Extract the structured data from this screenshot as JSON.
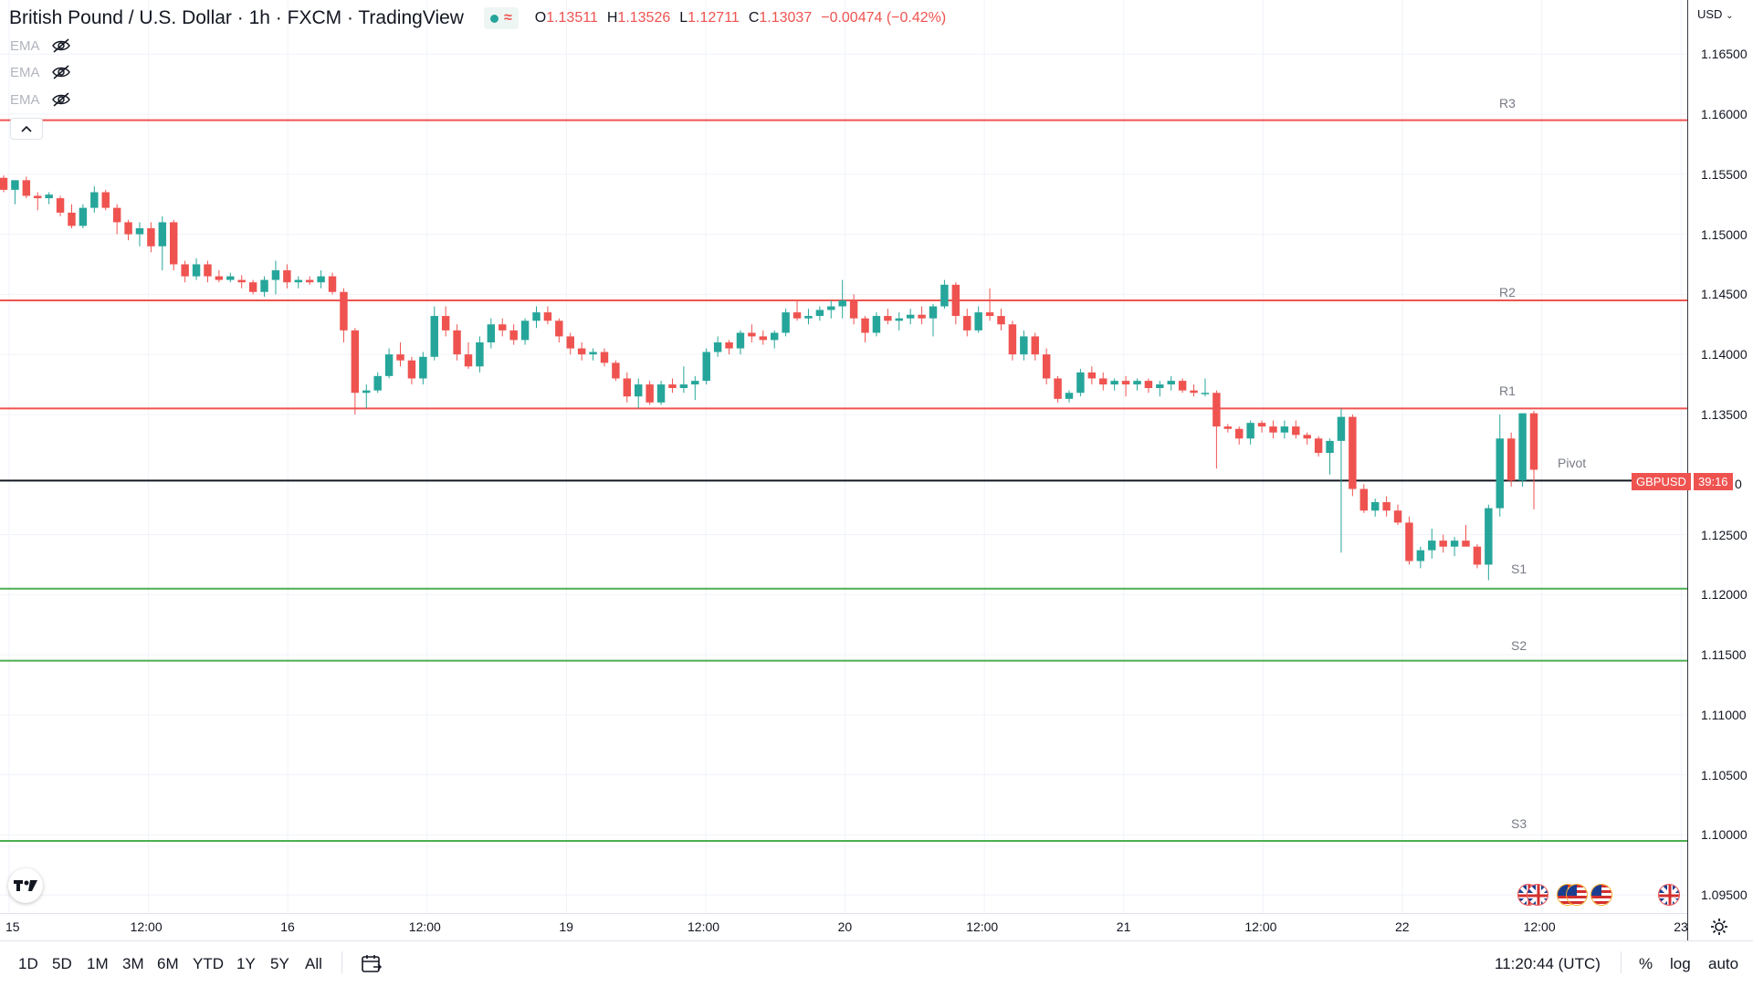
{
  "header": {
    "symbol_title": "British Pound / U.S. Dollar · 1h · FXCM · TradingView",
    "ohlc": [
      {
        "key": "O",
        "value": "1.13511"
      },
      {
        "key": "H",
        "value": "1.13526"
      },
      {
        "key": "L",
        "value": "1.12711"
      },
      {
        "key": "C",
        "value": "1.13037"
      },
      {
        "key": "",
        "value": "−0.00474 (−0.42%)"
      }
    ],
    "status_icon": "market-open-dot",
    "wave_icon": "≈"
  },
  "indicators": [
    {
      "label": "EMA",
      "icon": "eye-hidden-icon"
    },
    {
      "label": "EMA",
      "icon": "eye-hidden-icon"
    },
    {
      "label": "EMA",
      "icon": "eye-hidden-icon"
    }
  ],
  "price_axis": {
    "currency": "USD",
    "ticks": [
      "1.16500",
      "1.16000",
      "1.15500",
      "1.15000",
      "1.14500",
      "1.14000",
      "1.13500",
      "1.12500",
      "1.12000",
      "1.11500",
      "1.11000",
      "1.10500",
      "1.10000",
      "1.09500"
    ],
    "partial_tick": "0"
  },
  "price_badge": {
    "symbol": "GBPUSD",
    "countdown": "39:16",
    "color": "#ef5350"
  },
  "time_axis": {
    "labels": [
      "15",
      "12:00",
      "16",
      "12:00",
      "19",
      "12:00",
      "20",
      "12:00",
      "21",
      "12:00",
      "22",
      "12:00",
      "23"
    ]
  },
  "bottom_toolbar": {
    "ranges": [
      "1D",
      "5D",
      "1M",
      "3M",
      "6M",
      "YTD",
      "1Y",
      "5Y",
      "All"
    ],
    "clock": "11:20:44 (UTC)",
    "percent": "%",
    "log": "log",
    "auto": "auto"
  },
  "colors": {
    "up": "#26a69a",
    "down": "#ef5350",
    "resistance": "#ef5350",
    "support": "#4caf50",
    "pivot": "#131722"
  },
  "chart_data": {
    "type": "candlestick",
    "title": "British Pound / U.S. Dollar",
    "interval": "1h",
    "ylim": [
      1.0935,
      1.1695
    ],
    "levels": [
      {
        "name": "R3",
        "value": 1.1595,
        "kind": "resistance"
      },
      {
        "name": "R2",
        "value": 1.1445,
        "kind": "resistance"
      },
      {
        "name": "R1",
        "value": 1.1355,
        "kind": "resistance"
      },
      {
        "name": "Pivot",
        "value": 1.1295,
        "kind": "pivot"
      },
      {
        "name": "S1",
        "value": 1.1205,
        "kind": "support"
      },
      {
        "name": "S2",
        "value": 1.1145,
        "kind": "support"
      },
      {
        "name": "S3",
        "value": 1.0995,
        "kind": "support"
      }
    ],
    "current_price": 1.13037,
    "candles": [
      [
        1.1547,
        1.1549,
        1.1535,
        1.1537
      ],
      [
        1.1537,
        1.1545,
        1.1525,
        1.1545
      ],
      [
        1.1545,
        1.1548,
        1.153,
        1.1532
      ],
      [
        1.1532,
        1.1535,
        1.152,
        1.153
      ],
      [
        1.153,
        1.1535,
        1.1525,
        1.1533
      ],
      [
        1.153,
        1.1532,
        1.1515,
        1.1518
      ],
      [
        1.1518,
        1.1525,
        1.1505,
        1.1507
      ],
      [
        1.1507,
        1.1525,
        1.1505,
        1.1522
      ],
      [
        1.1522,
        1.154,
        1.1518,
        1.1535
      ],
      [
        1.1535,
        1.1537,
        1.152,
        1.1522
      ],
      [
        1.1522,
        1.1525,
        1.15,
        1.151
      ],
      [
        1.151,
        1.1512,
        1.1495,
        1.15
      ],
      [
        1.15,
        1.151,
        1.149,
        1.1505
      ],
      [
        1.1505,
        1.151,
        1.1485,
        1.149
      ],
      [
        1.149,
        1.1515,
        1.147,
        1.151
      ],
      [
        1.151,
        1.1512,
        1.147,
        1.1475
      ],
      [
        1.1475,
        1.1478,
        1.146,
        1.1465
      ],
      [
        1.1465,
        1.148,
        1.1462,
        1.1475
      ],
      [
        1.1475,
        1.1478,
        1.146,
        1.1465
      ],
      [
        1.1465,
        1.147,
        1.146,
        1.1462
      ],
      [
        1.1462,
        1.1468,
        1.146,
        1.1465
      ],
      [
        1.1462,
        1.1466,
        1.1455,
        1.146
      ],
      [
        1.146,
        1.1462,
        1.145,
        1.1452
      ],
      [
        1.1452,
        1.1465,
        1.1448,
        1.1462
      ],
      [
        1.1462,
        1.1478,
        1.145,
        1.147
      ],
      [
        1.147,
        1.1475,
        1.1455,
        1.146
      ],
      [
        1.146,
        1.1465,
        1.1455,
        1.1462
      ],
      [
        1.1462,
        1.1465,
        1.1458,
        1.146
      ],
      [
        1.146,
        1.147,
        1.1455,
        1.1465
      ],
      [
        1.1465,
        1.1468,
        1.145,
        1.1452
      ],
      [
        1.1452,
        1.1455,
        1.141,
        1.142
      ],
      [
        1.142,
        1.1422,
        1.135,
        1.1368
      ],
      [
        1.1368,
        1.1375,
        1.1355,
        1.137
      ],
      [
        1.137,
        1.1385,
        1.1368,
        1.1382
      ],
      [
        1.1382,
        1.1405,
        1.138,
        1.14
      ],
      [
        1.14,
        1.141,
        1.139,
        1.1395
      ],
      [
        1.1395,
        1.1398,
        1.1375,
        1.138
      ],
      [
        1.138,
        1.1402,
        1.1375,
        1.1398
      ],
      [
        1.1398,
        1.144,
        1.1395,
        1.1432
      ],
      [
        1.1432,
        1.144,
        1.1415,
        1.142
      ],
      [
        1.142,
        1.1425,
        1.1395,
        1.14
      ],
      [
        1.14,
        1.141,
        1.1388,
        1.139
      ],
      [
        1.139,
        1.1415,
        1.1385,
        1.141
      ],
      [
        1.141,
        1.143,
        1.1405,
        1.1425
      ],
      [
        1.1425,
        1.143,
        1.1415,
        1.142
      ],
      [
        1.142,
        1.1425,
        1.1408,
        1.1412
      ],
      [
        1.1412,
        1.143,
        1.1408,
        1.1428
      ],
      [
        1.1428,
        1.144,
        1.1422,
        1.1435
      ],
      [
        1.1435,
        1.144,
        1.1425,
        1.1428
      ],
      [
        1.1428,
        1.143,
        1.141,
        1.1415
      ],
      [
        1.1415,
        1.1418,
        1.14,
        1.1405
      ],
      [
        1.1405,
        1.141,
        1.1395,
        1.14
      ],
      [
        1.14,
        1.1405,
        1.1395,
        1.1402
      ],
      [
        1.1402,
        1.1405,
        1.139,
        1.1393
      ],
      [
        1.1393,
        1.1395,
        1.1378,
        1.138
      ],
      [
        1.138,
        1.1385,
        1.136,
        1.1365
      ],
      [
        1.1365,
        1.138,
        1.1355,
        1.1375
      ],
      [
        1.1375,
        1.1378,
        1.1358,
        1.136
      ],
      [
        1.136,
        1.1378,
        1.1358,
        1.1375
      ],
      [
        1.1375,
        1.138,
        1.1368,
        1.1372
      ],
      [
        1.1372,
        1.139,
        1.1368,
        1.1375
      ],
      [
        1.1375,
        1.1382,
        1.1362,
        1.1378
      ],
      [
        1.1378,
        1.1405,
        1.1375,
        1.1402
      ],
      [
        1.1402,
        1.1415,
        1.1398,
        1.141
      ],
      [
        1.141,
        1.1412,
        1.14,
        1.1405
      ],
      [
        1.1405,
        1.142,
        1.14,
        1.1418
      ],
      [
        1.1418,
        1.1425,
        1.141,
        1.1415
      ],
      [
        1.1415,
        1.142,
        1.1408,
        1.1412
      ],
      [
        1.1412,
        1.142,
        1.1405,
        1.1418
      ],
      [
        1.1418,
        1.1438,
        1.1415,
        1.1435
      ],
      [
        1.1435,
        1.1445,
        1.1428,
        1.143
      ],
      [
        1.143,
        1.1438,
        1.1425,
        1.1432
      ],
      [
        1.1432,
        1.144,
        1.1428,
        1.1437
      ],
      [
        1.1437,
        1.1445,
        1.143,
        1.144
      ],
      [
        1.144,
        1.1462,
        1.143,
        1.1445
      ],
      [
        1.1445,
        1.145,
        1.1425,
        1.143
      ],
      [
        1.143,
        1.1432,
        1.141,
        1.1418
      ],
      [
        1.1418,
        1.1435,
        1.1415,
        1.1432
      ],
      [
        1.1432,
        1.1438,
        1.1425,
        1.1428
      ],
      [
        1.1428,
        1.1435,
        1.142,
        1.143
      ],
      [
        1.143,
        1.1438,
        1.1425,
        1.1433
      ],
      [
        1.1433,
        1.144,
        1.1425,
        1.143
      ],
      [
        1.143,
        1.1442,
        1.1415,
        1.144
      ],
      [
        1.144,
        1.1462,
        1.1438,
        1.1458
      ],
      [
        1.1458,
        1.146,
        1.1425,
        1.1432
      ],
      [
        1.1432,
        1.1438,
        1.1415,
        1.142
      ],
      [
        1.142,
        1.144,
        1.1418,
        1.1435
      ],
      [
        1.1435,
        1.1455,
        1.1428,
        1.1432
      ],
      [
        1.1432,
        1.1438,
        1.142,
        1.1425
      ],
      [
        1.1425,
        1.1428,
        1.1395,
        1.14
      ],
      [
        1.14,
        1.142,
        1.1395,
        1.1415
      ],
      [
        1.1415,
        1.1418,
        1.1395,
        1.14
      ],
      [
        1.14,
        1.1405,
        1.1375,
        1.138
      ],
      [
        1.138,
        1.1382,
        1.136,
        1.1363
      ],
      [
        1.1363,
        1.137,
        1.136,
        1.1368
      ],
      [
        1.1368,
        1.1388,
        1.1365,
        1.1385
      ],
      [
        1.1385,
        1.139,
        1.1375,
        1.138
      ],
      [
        1.138,
        1.1385,
        1.137,
        1.1375
      ],
      [
        1.1375,
        1.138,
        1.137,
        1.1378
      ],
      [
        1.1378,
        1.1382,
        1.1365,
        1.1375
      ],
      [
        1.1375,
        1.138,
        1.137,
        1.1378
      ],
      [
        1.1378,
        1.138,
        1.1368,
        1.1372
      ],
      [
        1.1372,
        1.1378,
        1.1365,
        1.1375
      ],
      [
        1.1375,
        1.1382,
        1.137,
        1.1378
      ],
      [
        1.1378,
        1.138,
        1.1368,
        1.137
      ],
      [
        1.137,
        1.1375,
        1.1365,
        1.1368
      ],
      [
        1.1368,
        1.138,
        1.1365,
        1.1368
      ],
      [
        1.1368,
        1.137,
        1.1305,
        1.134
      ],
      [
        1.134,
        1.1342,
        1.1335,
        1.1338
      ],
      [
        1.1338,
        1.134,
        1.1325,
        1.133
      ],
      [
        1.133,
        1.1345,
        1.1325,
        1.1343
      ],
      [
        1.1343,
        1.1345,
        1.1335,
        1.134
      ],
      [
        1.134,
        1.1345,
        1.133,
        1.1335
      ],
      [
        1.1335,
        1.1345,
        1.133,
        1.134
      ],
      [
        1.134,
        1.1345,
        1.133,
        1.1333
      ],
      [
        1.1333,
        1.1335,
        1.1325,
        1.133
      ],
      [
        1.133,
        1.1332,
        1.1315,
        1.1318
      ],
      [
        1.1318,
        1.133,
        1.13,
        1.1328
      ],
      [
        1.1328,
        1.1355,
        1.1235,
        1.1348
      ],
      [
        1.1348,
        1.135,
        1.1282,
        1.1288
      ],
      [
        1.1288,
        1.1292,
        1.1268,
        1.127
      ],
      [
        1.127,
        1.128,
        1.1265,
        1.1277
      ],
      [
        1.1277,
        1.1282,
        1.1265,
        1.127
      ],
      [
        1.127,
        1.1275,
        1.1258,
        1.126
      ],
      [
        1.126,
        1.1265,
        1.1225,
        1.1228
      ],
      [
        1.1228,
        1.124,
        1.1222,
        1.1237
      ],
      [
        1.1237,
        1.1255,
        1.123,
        1.1245
      ],
      [
        1.1245,
        1.125,
        1.1235,
        1.124
      ],
      [
        1.124,
        1.1248,
        1.1232,
        1.1245
      ],
      [
        1.1245,
        1.1258,
        1.124,
        1.124
      ],
      [
        1.124,
        1.1242,
        1.1222,
        1.1225
      ],
      [
        1.1225,
        1.1275,
        1.1212,
        1.1272
      ],
      [
        1.1272,
        1.135,
        1.1265,
        1.133
      ],
      [
        1.133,
        1.1335,
        1.129,
        1.1295
      ],
      [
        1.1295,
        1.135,
        1.129,
        1.1351
      ],
      [
        1.1351,
        1.1353,
        1.1271,
        1.1304
      ]
    ]
  }
}
